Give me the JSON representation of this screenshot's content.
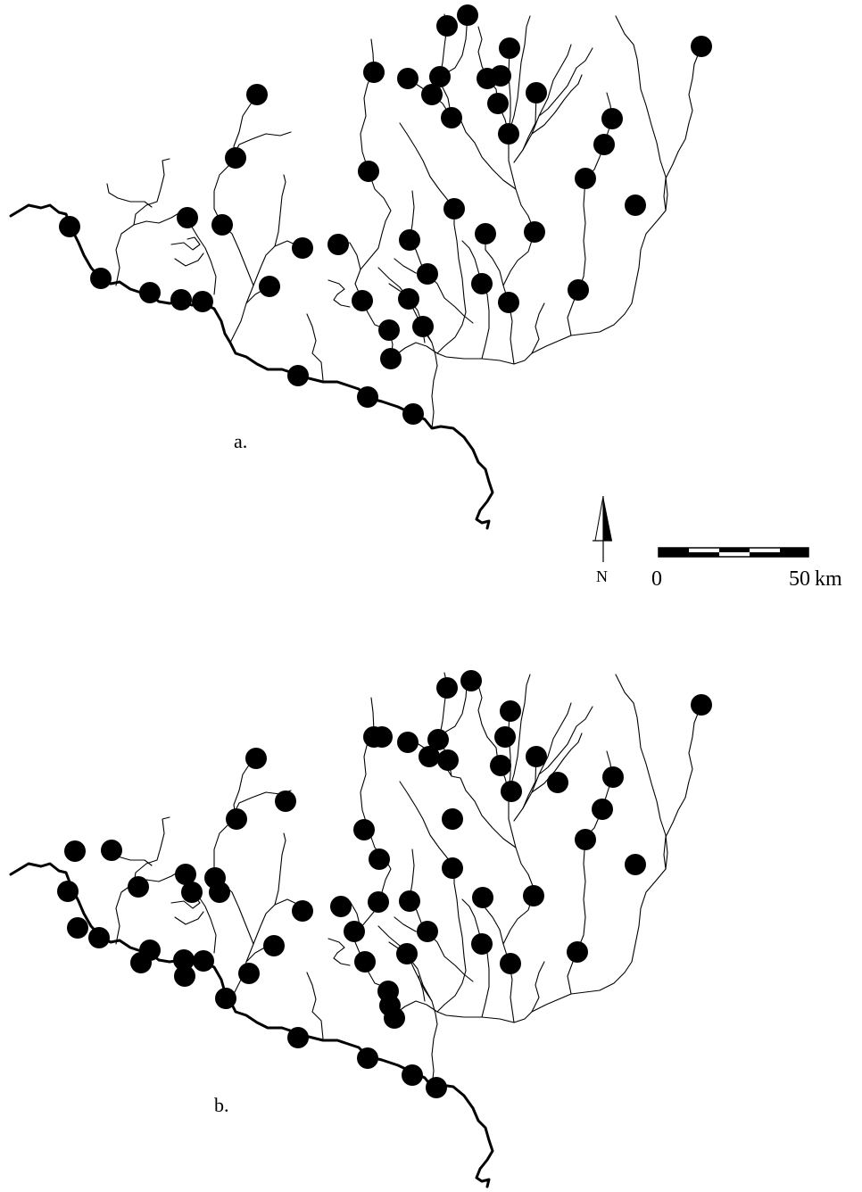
{
  "panels": [
    {
      "label": "a.",
      "sites": [
        [
          78,
          254
        ],
        [
          113,
          312
        ],
        [
          168,
          328
        ],
        [
          203,
          336
        ],
        [
          227,
          338
        ],
        [
          288,
          106
        ],
        [
          264,
          177
        ],
        [
          249,
          252
        ],
        [
          210,
          244
        ],
        [
          302,
          321
        ],
        [
          339,
          278
        ],
        [
          379,
          274
        ],
        [
          334,
          421
        ],
        [
          412,
          445
        ],
        [
          463,
          464
        ],
        [
          413,
          192
        ],
        [
          419,
          81
        ],
        [
          457,
          88
        ],
        [
          493,
          86
        ],
        [
          484,
          106
        ],
        [
          506,
          132
        ],
        [
          501,
          29
        ],
        [
          524,
          17
        ],
        [
          571,
          54
        ],
        [
          546,
          88
        ],
        [
          561,
          85
        ],
        [
          558,
          116
        ],
        [
          570,
          150
        ],
        [
          601,
          104
        ],
        [
          509,
          234
        ],
        [
          544,
          262
        ],
        [
          599,
          260
        ],
        [
          459,
          269
        ],
        [
          479,
          307
        ],
        [
          458,
          335
        ],
        [
          406,
          337
        ],
        [
          436,
          370
        ],
        [
          474,
          366
        ],
        [
          438,
          402
        ],
        [
          540,
          318
        ],
        [
          570,
          339
        ],
        [
          648,
          325
        ],
        [
          656,
          200
        ],
        [
          677,
          162
        ],
        [
          686,
          133
        ],
        [
          712,
          230
        ],
        [
          786,
          52
        ]
      ]
    },
    {
      "label": "b.",
      "sites": [
        [
          84,
          954
        ],
        [
          125,
          953
        ],
        [
          76,
          999
        ],
        [
          87,
          1040
        ],
        [
          111,
          1051
        ],
        [
          155,
          994
        ],
        [
          168,
          1065
        ],
        [
          158,
          1079
        ],
        [
          208,
          980
        ],
        [
          215,
          1000
        ],
        [
          241,
          984
        ],
        [
          246,
          1000
        ],
        [
          206,
          1076
        ],
        [
          228,
          1077
        ],
        [
          207,
          1094
        ],
        [
          287,
          850
        ],
        [
          320,
          898
        ],
        [
          265,
          918
        ],
        [
          307,
          1060
        ],
        [
          279,
          1091
        ],
        [
          253,
          1119
        ],
        [
          339,
          1021
        ],
        [
          382,
          1016
        ],
        [
          397,
          1044
        ],
        [
          409,
          1078
        ],
        [
          334,
          1163
        ],
        [
          412,
          1186
        ],
        [
          462,
          1205
        ],
        [
          489,
          1219
        ],
        [
          408,
          930
        ],
        [
          425,
          963
        ],
        [
          424,
          1011
        ],
        [
          419,
          826
        ],
        [
          428,
          826
        ],
        [
          457,
          832
        ],
        [
          491,
          829
        ],
        [
          481,
          848
        ],
        [
          502,
          852
        ],
        [
          501,
          771
        ],
        [
          528,
          763
        ],
        [
          572,
          797
        ],
        [
          566,
          826
        ],
        [
          561,
          858
        ],
        [
          573,
          887
        ],
        [
          601,
          848
        ],
        [
          625,
          877
        ],
        [
          507,
          918
        ],
        [
          507,
          973
        ],
        [
          541,
          1006
        ],
        [
          598,
          1004
        ],
        [
          459,
          1010
        ],
        [
          479,
          1044
        ],
        [
          456,
          1069
        ],
        [
          435,
          1111
        ],
        [
          437,
          1127
        ],
        [
          442,
          1141
        ],
        [
          540,
          1058
        ],
        [
          572,
          1080
        ],
        [
          647,
          1067
        ],
        [
          656,
          941
        ],
        [
          675,
          907
        ],
        [
          687,
          871
        ],
        [
          712,
          969
        ],
        [
          786,
          790
        ]
      ]
    }
  ],
  "scale": {
    "start_label": "0",
    "end_label": "50",
    "unit": "km"
  },
  "north_arrow": {
    "label": "N"
  }
}
